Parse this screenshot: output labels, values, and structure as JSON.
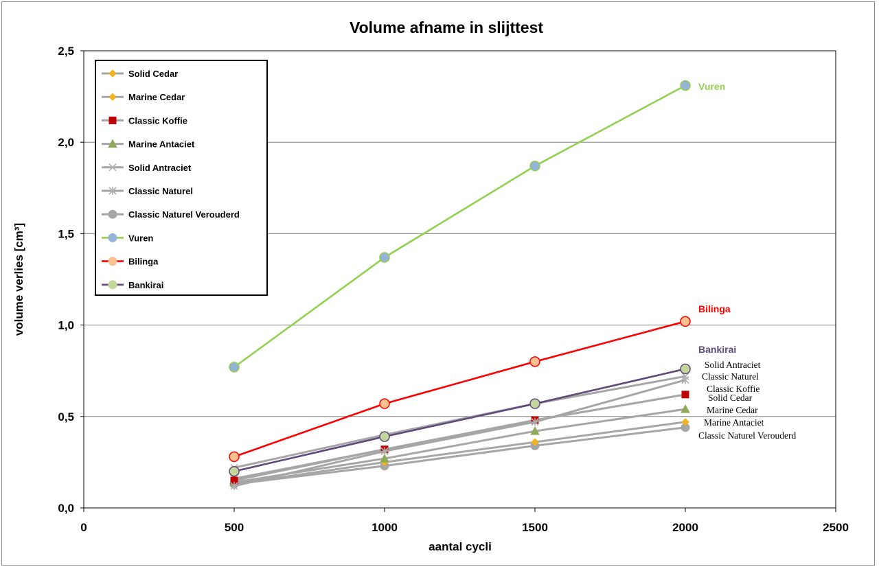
{
  "chart_data": {
    "type": "line",
    "title": "Volume afname in slijttest",
    "xlabel": "aantal cycli",
    "ylabel": "volume verlies  [cm³]",
    "xlim": [
      0,
      2500
    ],
    "ylim": [
      0,
      2.5
    ],
    "x_ticks": [
      "0",
      "500",
      "1000",
      "1500",
      "2000",
      "2500"
    ],
    "y_ticks": [
      "0,0",
      "0,5",
      "1,0",
      "1,5",
      "2,0",
      "2,5"
    ],
    "grid": "horizontal",
    "legend_position": "top-left",
    "x": [
      500,
      1000,
      1500,
      2000
    ],
    "series": [
      {
        "name": "Solid Cedar",
        "values": [
          0.16,
          0.32,
          0.48,
          0.62
        ],
        "color": "#a6a6a6",
        "marker": "diamond",
        "marker_color": "#f0b41e",
        "end_label": "Solid Cedar"
      },
      {
        "name": "Marine Cedar",
        "values": [
          0.13,
          0.25,
          0.36,
          0.47
        ],
        "color": "#a6a6a6",
        "marker": "diamond",
        "marker_color": "#f0b41e",
        "end_label": "Marine Cedar"
      },
      {
        "name": "Classic Koffie",
        "values": [
          0.15,
          0.32,
          0.48,
          0.62
        ],
        "color": "#a6a6a6",
        "marker": "square",
        "marker_color": "#c00000",
        "end_label": "Classic Koffie"
      },
      {
        "name": "Marine Antaciet",
        "values": [
          0.14,
          0.27,
          0.42,
          0.54
        ],
        "color": "#a6a6a6",
        "marker": "triangle",
        "marker_color": "#8fa85a",
        "end_label": "Marine Antaciet"
      },
      {
        "name": "Solid Antraciet",
        "values": [
          0.22,
          0.4,
          0.57,
          0.72
        ],
        "color": "#a6a6a6",
        "marker": "x",
        "marker_color": "#b0b0b0",
        "end_label": "Solid Antraciet"
      },
      {
        "name": "Classic Naturel",
        "values": [
          0.12,
          0.31,
          0.47,
          0.7
        ],
        "color": "#a6a6a6",
        "marker": "asterisk",
        "marker_color": "#b0b0b0",
        "end_label": "Classic Naturel"
      },
      {
        "name": "Classic Naturel Verouderd",
        "values": [
          0.13,
          0.23,
          0.34,
          0.44
        ],
        "color": "#a6a6a6",
        "marker": "circle",
        "marker_color": "#a6a6a6",
        "end_label": "Classic Naturel Verouderd"
      },
      {
        "name": "Vuren",
        "values": [
          0.77,
          1.37,
          1.87,
          2.31
        ],
        "color": "#92d050",
        "marker": "circle",
        "marker_color": "#95b3d7",
        "end_label": "Vuren"
      },
      {
        "name": "Bilinga",
        "values": [
          0.28,
          0.57,
          0.8,
          1.02
        ],
        "color": "#ff0000",
        "marker": "circle",
        "marker_color": "#fac090",
        "end_label": "Bilinga"
      },
      {
        "name": "Bankirai",
        "values": [
          0.2,
          0.39,
          0.57,
          0.76
        ],
        "color": "#5f497a",
        "marker": "circle",
        "marker_color": "#c3d69b",
        "end_label": "Bankirai"
      }
    ]
  }
}
